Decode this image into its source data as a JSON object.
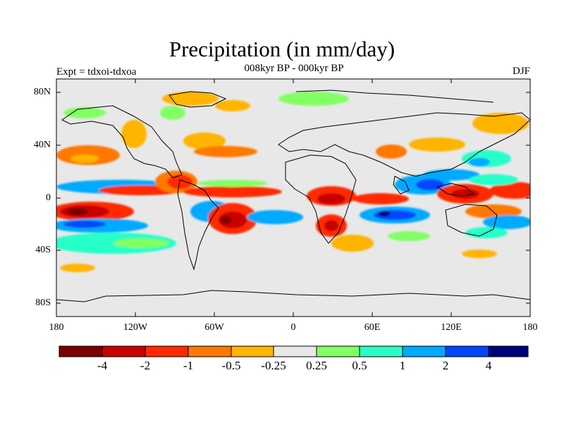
{
  "title": "Precipitation (in mm/day)",
  "subtitle": "008kyr BP - 000kyr BP",
  "left_label": "Expt = tdxoi-tdxoa",
  "right_label": "DJF",
  "lat_ticks": [
    "80N",
    "40N",
    "0",
    "40S",
    "80S"
  ],
  "lon_ticks": [
    "180",
    "120W",
    "60W",
    "0",
    "60E",
    "120E",
    "180"
  ],
  "colorbar": {
    "labels": [
      "-4",
      "-2",
      "-1",
      "-0.5",
      "-0.25",
      "0.25",
      "0.5",
      "1",
      "2",
      "4"
    ],
    "colors": [
      "#7a0000",
      "#c80000",
      "#ff2a00",
      "#ff7800",
      "#ffb400",
      "#e8e8e8",
      "#82ff64",
      "#28ffc8",
      "#00aaff",
      "#0046ff",
      "#00007a"
    ]
  },
  "map": {
    "background_color": "#e8e8e8",
    "coastline_color": "#000000",
    "patterns": "tropical bands of positive (blue) and negative (red) precipitation anomalies"
  }
}
